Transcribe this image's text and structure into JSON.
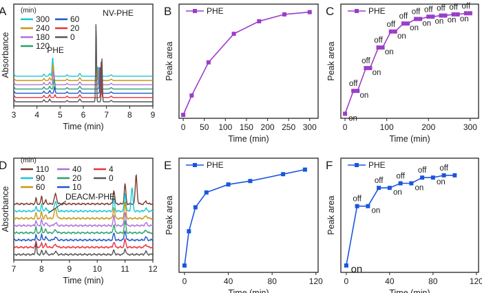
{
  "figure": {
    "panel_labels": [
      "A",
      "B",
      "C",
      "D",
      "E",
      "F"
    ]
  },
  "chart_data": [
    {
      "panel": "A",
      "type": "line",
      "xlabel": "Time (min)",
      "ylabel": "Absorbance",
      "xlim": [
        3,
        9
      ],
      "xticks": [
        "3",
        "4",
        "5",
        "6",
        "7",
        "8",
        "9"
      ],
      "legend_title": "(min)",
      "annotations": [
        "PHE",
        "NV-PHE"
      ],
      "series": [
        {
          "name": "300",
          "color": "#19c6d6",
          "offset": 6
        },
        {
          "name": "240",
          "color": "#c8960f",
          "offset": 5
        },
        {
          "name": "180",
          "color": "#b070d8",
          "offset": 4
        },
        {
          "name": "120",
          "color": "#2aa06a",
          "offset": 3
        },
        {
          "name": "60",
          "color": "#1a55c8",
          "offset": 2
        },
        {
          "name": "20",
          "color": "#e8323a",
          "offset": 1
        },
        {
          "name": "0",
          "color": "#555555",
          "offset": 0
        }
      ],
      "phe_peak_heights": [
        28,
        24,
        20,
        15,
        9,
        4,
        0
      ],
      "nv_peak_heights": [
        14,
        20,
        26,
        32,
        40,
        52,
        66
      ]
    },
    {
      "panel": "B",
      "type": "line",
      "ylabel": "Peak area",
      "xlabel": "Time (min)",
      "xlim": [
        -10,
        320
      ],
      "ylim": [
        0,
        1
      ],
      "xticks": [
        0,
        50,
        100,
        150,
        200,
        250,
        300
      ],
      "series": [
        {
          "name": "PHE",
          "color": "#9b3dc8",
          "x": [
            0,
            20,
            60,
            120,
            180,
            240,
            300
          ],
          "y": [
            0.03,
            0.2,
            0.49,
            0.74,
            0.85,
            0.91,
            0.93
          ]
        }
      ]
    },
    {
      "panel": "C",
      "type": "line",
      "ylabel": "Peak area",
      "xlabel": "Time (min)",
      "xlim": [
        -10,
        320
      ],
      "ylim": [
        0,
        1
      ],
      "xticks": [
        0,
        100,
        200,
        300
      ],
      "series": [
        {
          "name": "PHE",
          "color": "#9b3dc8",
          "x": [
            0,
            20,
            30,
            50,
            60,
            80,
            90,
            110,
            120,
            140,
            150,
            170,
            180,
            200,
            210,
            230,
            240,
            260,
            270,
            290,
            300
          ],
          "y": [
            0.04,
            0.24,
            0.24,
            0.44,
            0.44,
            0.62,
            0.62,
            0.76,
            0.76,
            0.83,
            0.83,
            0.87,
            0.87,
            0.89,
            0.89,
            0.9,
            0.9,
            0.91,
            0.91,
            0.92,
            0.92
          ]
        }
      ],
      "labels": [
        {
          "text": "on",
          "x": 5,
          "y": 0.04,
          "pos": "right"
        },
        {
          "text": "off",
          "x": 20,
          "y": 0.24,
          "pos": "above"
        },
        {
          "text": "on",
          "x": 32,
          "y": 0.24,
          "pos": "right"
        },
        {
          "text": "off",
          "x": 50,
          "y": 0.44,
          "pos": "above"
        },
        {
          "text": "on",
          "x": 62,
          "y": 0.44,
          "pos": "right"
        },
        {
          "text": "off",
          "x": 80,
          "y": 0.62,
          "pos": "above"
        },
        {
          "text": "on",
          "x": 92,
          "y": 0.62,
          "pos": "right"
        },
        {
          "text": "off",
          "x": 110,
          "y": 0.76,
          "pos": "above"
        },
        {
          "text": "on",
          "x": 122,
          "y": 0.76,
          "pos": "right"
        },
        {
          "text": "off",
          "x": 140,
          "y": 0.83,
          "pos": "above"
        },
        {
          "text": "on",
          "x": 152,
          "y": 0.83,
          "pos": "right"
        },
        {
          "text": "off",
          "x": 170,
          "y": 0.87,
          "pos": "above"
        },
        {
          "text": "on",
          "x": 182,
          "y": 0.87,
          "pos": "right"
        },
        {
          "text": "off",
          "x": 200,
          "y": 0.89,
          "pos": "above"
        },
        {
          "text": "on",
          "x": 212,
          "y": 0.89,
          "pos": "right"
        },
        {
          "text": "off",
          "x": 230,
          "y": 0.9,
          "pos": "above"
        },
        {
          "text": "on",
          "x": 242,
          "y": 0.9,
          "pos": "right"
        },
        {
          "text": "off",
          "x": 260,
          "y": 0.91,
          "pos": "above"
        },
        {
          "text": "on",
          "x": 272,
          "y": 0.91,
          "pos": "right"
        },
        {
          "text": "off",
          "x": 290,
          "y": 0.92,
          "pos": "above"
        }
      ]
    },
    {
      "panel": "D",
      "type": "line",
      "xlabel": "Time (min)",
      "ylabel": "Absorbance",
      "xlim": [
        7,
        12
      ],
      "xticks": [
        "7",
        "8",
        "9",
        "10",
        "11",
        "12"
      ],
      "legend_title": "(min)",
      "annotations": [
        "DEACM-PHE"
      ],
      "series": [
        {
          "name": "110",
          "color": "#7a3b2e",
          "offset": 7
        },
        {
          "name": "90",
          "color": "#19c6d6",
          "offset": 6
        },
        {
          "name": "60",
          "color": "#c8960f",
          "offset": 5
        },
        {
          "name": "40",
          "color": "#b070d8",
          "offset": 4
        },
        {
          "name": "20",
          "color": "#2aa06a",
          "offset": 3
        },
        {
          "name": "10",
          "color": "#1a55c8",
          "offset": 2
        },
        {
          "name": "4",
          "color": "#e8323a",
          "offset": 1
        },
        {
          "name": "0",
          "color": "#555555",
          "offset": 0
        }
      ]
    },
    {
      "panel": "E",
      "type": "line",
      "ylabel": "Peak area",
      "xlabel": "Time (min)",
      "xlim": [
        -5,
        122
      ],
      "ylim": [
        0,
        1
      ],
      "xticks": [
        0,
        40,
        80,
        120
      ],
      "series": [
        {
          "name": "PHE",
          "color": "#1a55e0",
          "x": [
            0,
            4,
            10,
            20,
            40,
            60,
            90,
            110
          ],
          "y": [
            0.06,
            0.36,
            0.57,
            0.7,
            0.77,
            0.8,
            0.86,
            0.9
          ]
        }
      ]
    },
    {
      "panel": "F",
      "type": "line",
      "ylabel": "Peak area",
      "xlabel": "Time (min)",
      "xlim": [
        -5,
        122
      ],
      "ylim": [
        0,
        1
      ],
      "xticks": [
        0,
        40,
        80,
        120
      ],
      "series": [
        {
          "name": "PHE",
          "color": "#1a55e0",
          "x": [
            0,
            10,
            20,
            30,
            40,
            50,
            60,
            70,
            80,
            90,
            100
          ],
          "y": [
            0.06,
            0.58,
            0.58,
            0.74,
            0.74,
            0.78,
            0.78,
            0.83,
            0.83,
            0.85,
            0.85
          ]
        }
      ],
      "labels": [
        {
          "text": "on",
          "x": 3,
          "y": 0.06,
          "pos": "right",
          "big": true
        },
        {
          "text": "off",
          "x": 10,
          "y": 0.58,
          "pos": "above"
        },
        {
          "text": "on",
          "x": 22,
          "y": 0.58,
          "pos": "right"
        },
        {
          "text": "off",
          "x": 30,
          "y": 0.74,
          "pos": "above"
        },
        {
          "text": "on",
          "x": 42,
          "y": 0.74,
          "pos": "right"
        },
        {
          "text": "off",
          "x": 50,
          "y": 0.78,
          "pos": "above"
        },
        {
          "text": "on",
          "x": 62,
          "y": 0.78,
          "pos": "right"
        },
        {
          "text": "off",
          "x": 70,
          "y": 0.83,
          "pos": "above"
        },
        {
          "text": "on",
          "x": 82,
          "y": 0.83,
          "pos": "right"
        },
        {
          "text": "off",
          "x": 90,
          "y": 0.85,
          "pos": "above"
        }
      ]
    }
  ]
}
